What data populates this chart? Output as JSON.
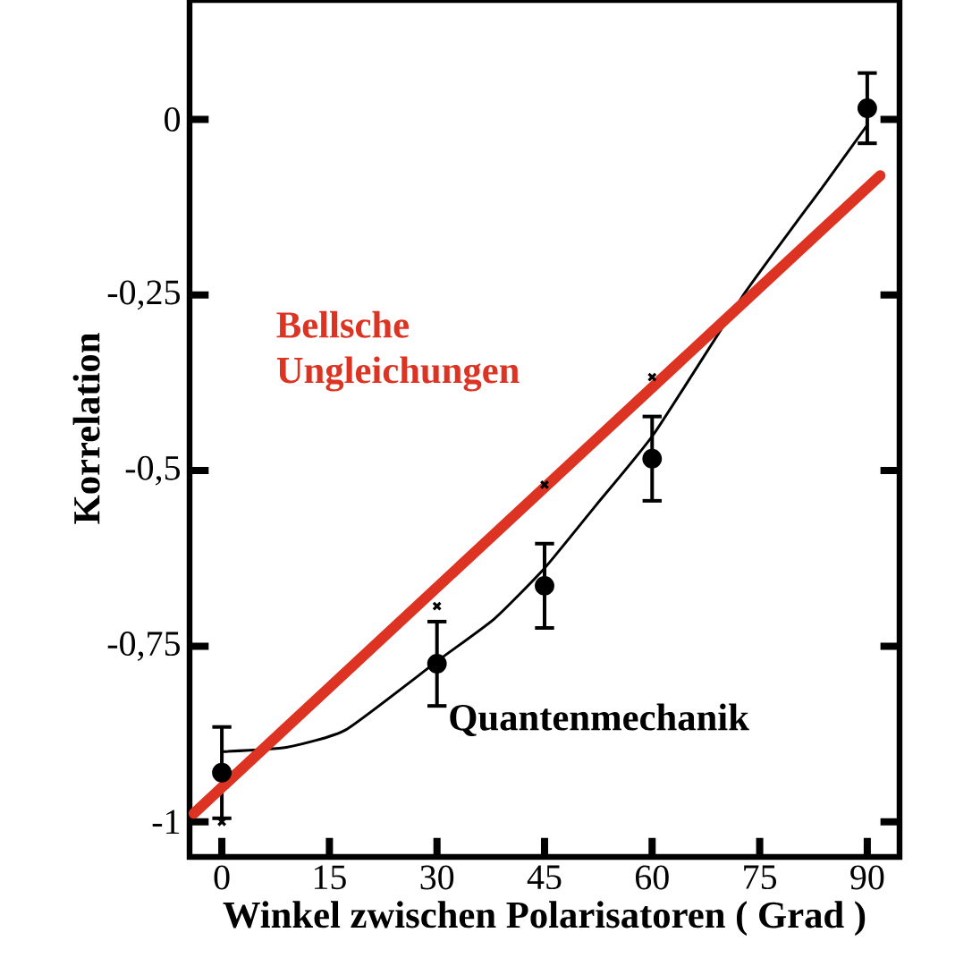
{
  "chart_data": {
    "type": "scatter",
    "xlabel": "Winkel zwischen Polarisatoren ( Grad )",
    "ylabel": "Korrelation",
    "xlim": [
      -4.5,
      94.5
    ],
    "ylim": [
      -1.05,
      0.17
    ],
    "xticks": [
      0,
      15,
      30,
      45,
      60,
      75,
      90
    ],
    "yticks": [
      {
        "value": -1,
        "label": "-1"
      },
      {
        "value": -0.75,
        "label": "-0,75"
      },
      {
        "value": -0.5,
        "label": "-0,5"
      },
      {
        "value": -0.25,
        "label": "-0,25"
      },
      0
    ],
    "series": [
      {
        "marker": "circle",
        "color": "#000000",
        "x": [
          0,
          30,
          45,
          60,
          90
        ],
        "values": [
          -0.93,
          -0.775,
          -0.664,
          -0.483,
          0.016
        ],
        "errors": [
          0.065,
          0.06,
          0.06,
          0.06,
          0.05
        ]
      },
      {
        "marker": "cross",
        "color": "#000000",
        "x": [
          0,
          30,
          45,
          60
        ],
        "values": [
          -1.0,
          -0.693,
          -0.52,
          -0.367
        ]
      },
      {
        "type": "line",
        "name": "Quantenmechanik",
        "color": "#000000",
        "x": [
          0.2,
          9,
          17.3,
          30.2,
          38,
          45,
          52.2,
          60.3,
          73,
          84,
          90
        ],
        "values": [
          -0.9,
          -0.894,
          -0.869,
          -0.77,
          -0.711,
          -0.639,
          -0.549,
          -0.447,
          -0.246,
          -0.093,
          -0.008
        ]
      },
      {
        "type": "line",
        "name": "Bellsche Ungleichungen",
        "color": "#dd3322",
        "x": [
          -3.9,
          91.8
        ],
        "values": [
          -0.988,
          -0.08
        ]
      }
    ]
  }
}
